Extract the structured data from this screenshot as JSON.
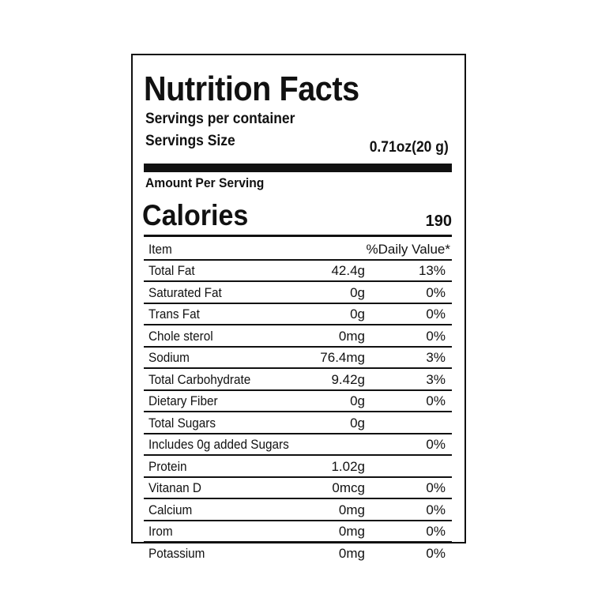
{
  "label": {
    "title": "Nutrition Facts",
    "servings_per_container": "Servings per container",
    "serving_size_label": "Servings Size",
    "serving_size_value": "0.71oz(20 g)",
    "amount_per_serving": "Amount Per Serving",
    "calories_label": "Calories",
    "calories_value": "190"
  },
  "table": {
    "header": {
      "item": "Item",
      "daily_value": "%Daily Value*"
    },
    "rows": [
      {
        "name": "Total Fat",
        "amount": "42.4g",
        "dv": "13%"
      },
      {
        "name": "Saturated Fat",
        "amount": "0g",
        "dv": "0%"
      },
      {
        "name": "Trans Fat",
        "amount": "0g",
        "dv": "0%"
      },
      {
        "name": "Chole sterol",
        "amount": "0mg",
        "dv": "0%"
      },
      {
        "name": "Sodium",
        "amount": "76.4mg",
        "dv": "3%"
      },
      {
        "name": "Total Carbohydrate",
        "amount": "9.42g",
        "dv": "3%"
      },
      {
        "name": "Dietary Fiber",
        "amount": "0g",
        "dv": "0%"
      },
      {
        "name": "Total  Sugars",
        "amount": "0g",
        "dv": ""
      },
      {
        "name": "Includes 0g added Sugars",
        "amount": "",
        "dv": "0%"
      },
      {
        "name": "Protein",
        "amount": "1.02g",
        "dv": ""
      },
      {
        "name": "Vitanan D",
        "amount": "0mcg",
        "dv": "0%"
      },
      {
        "name": "Calcium",
        "amount": "0mg",
        "dv": "0%"
      },
      {
        "name": "Irom",
        "amount": "0mg",
        "dv": "0%"
      },
      {
        "name": "Potassium",
        "amount": "0mg",
        "dv": "0%"
      }
    ]
  }
}
